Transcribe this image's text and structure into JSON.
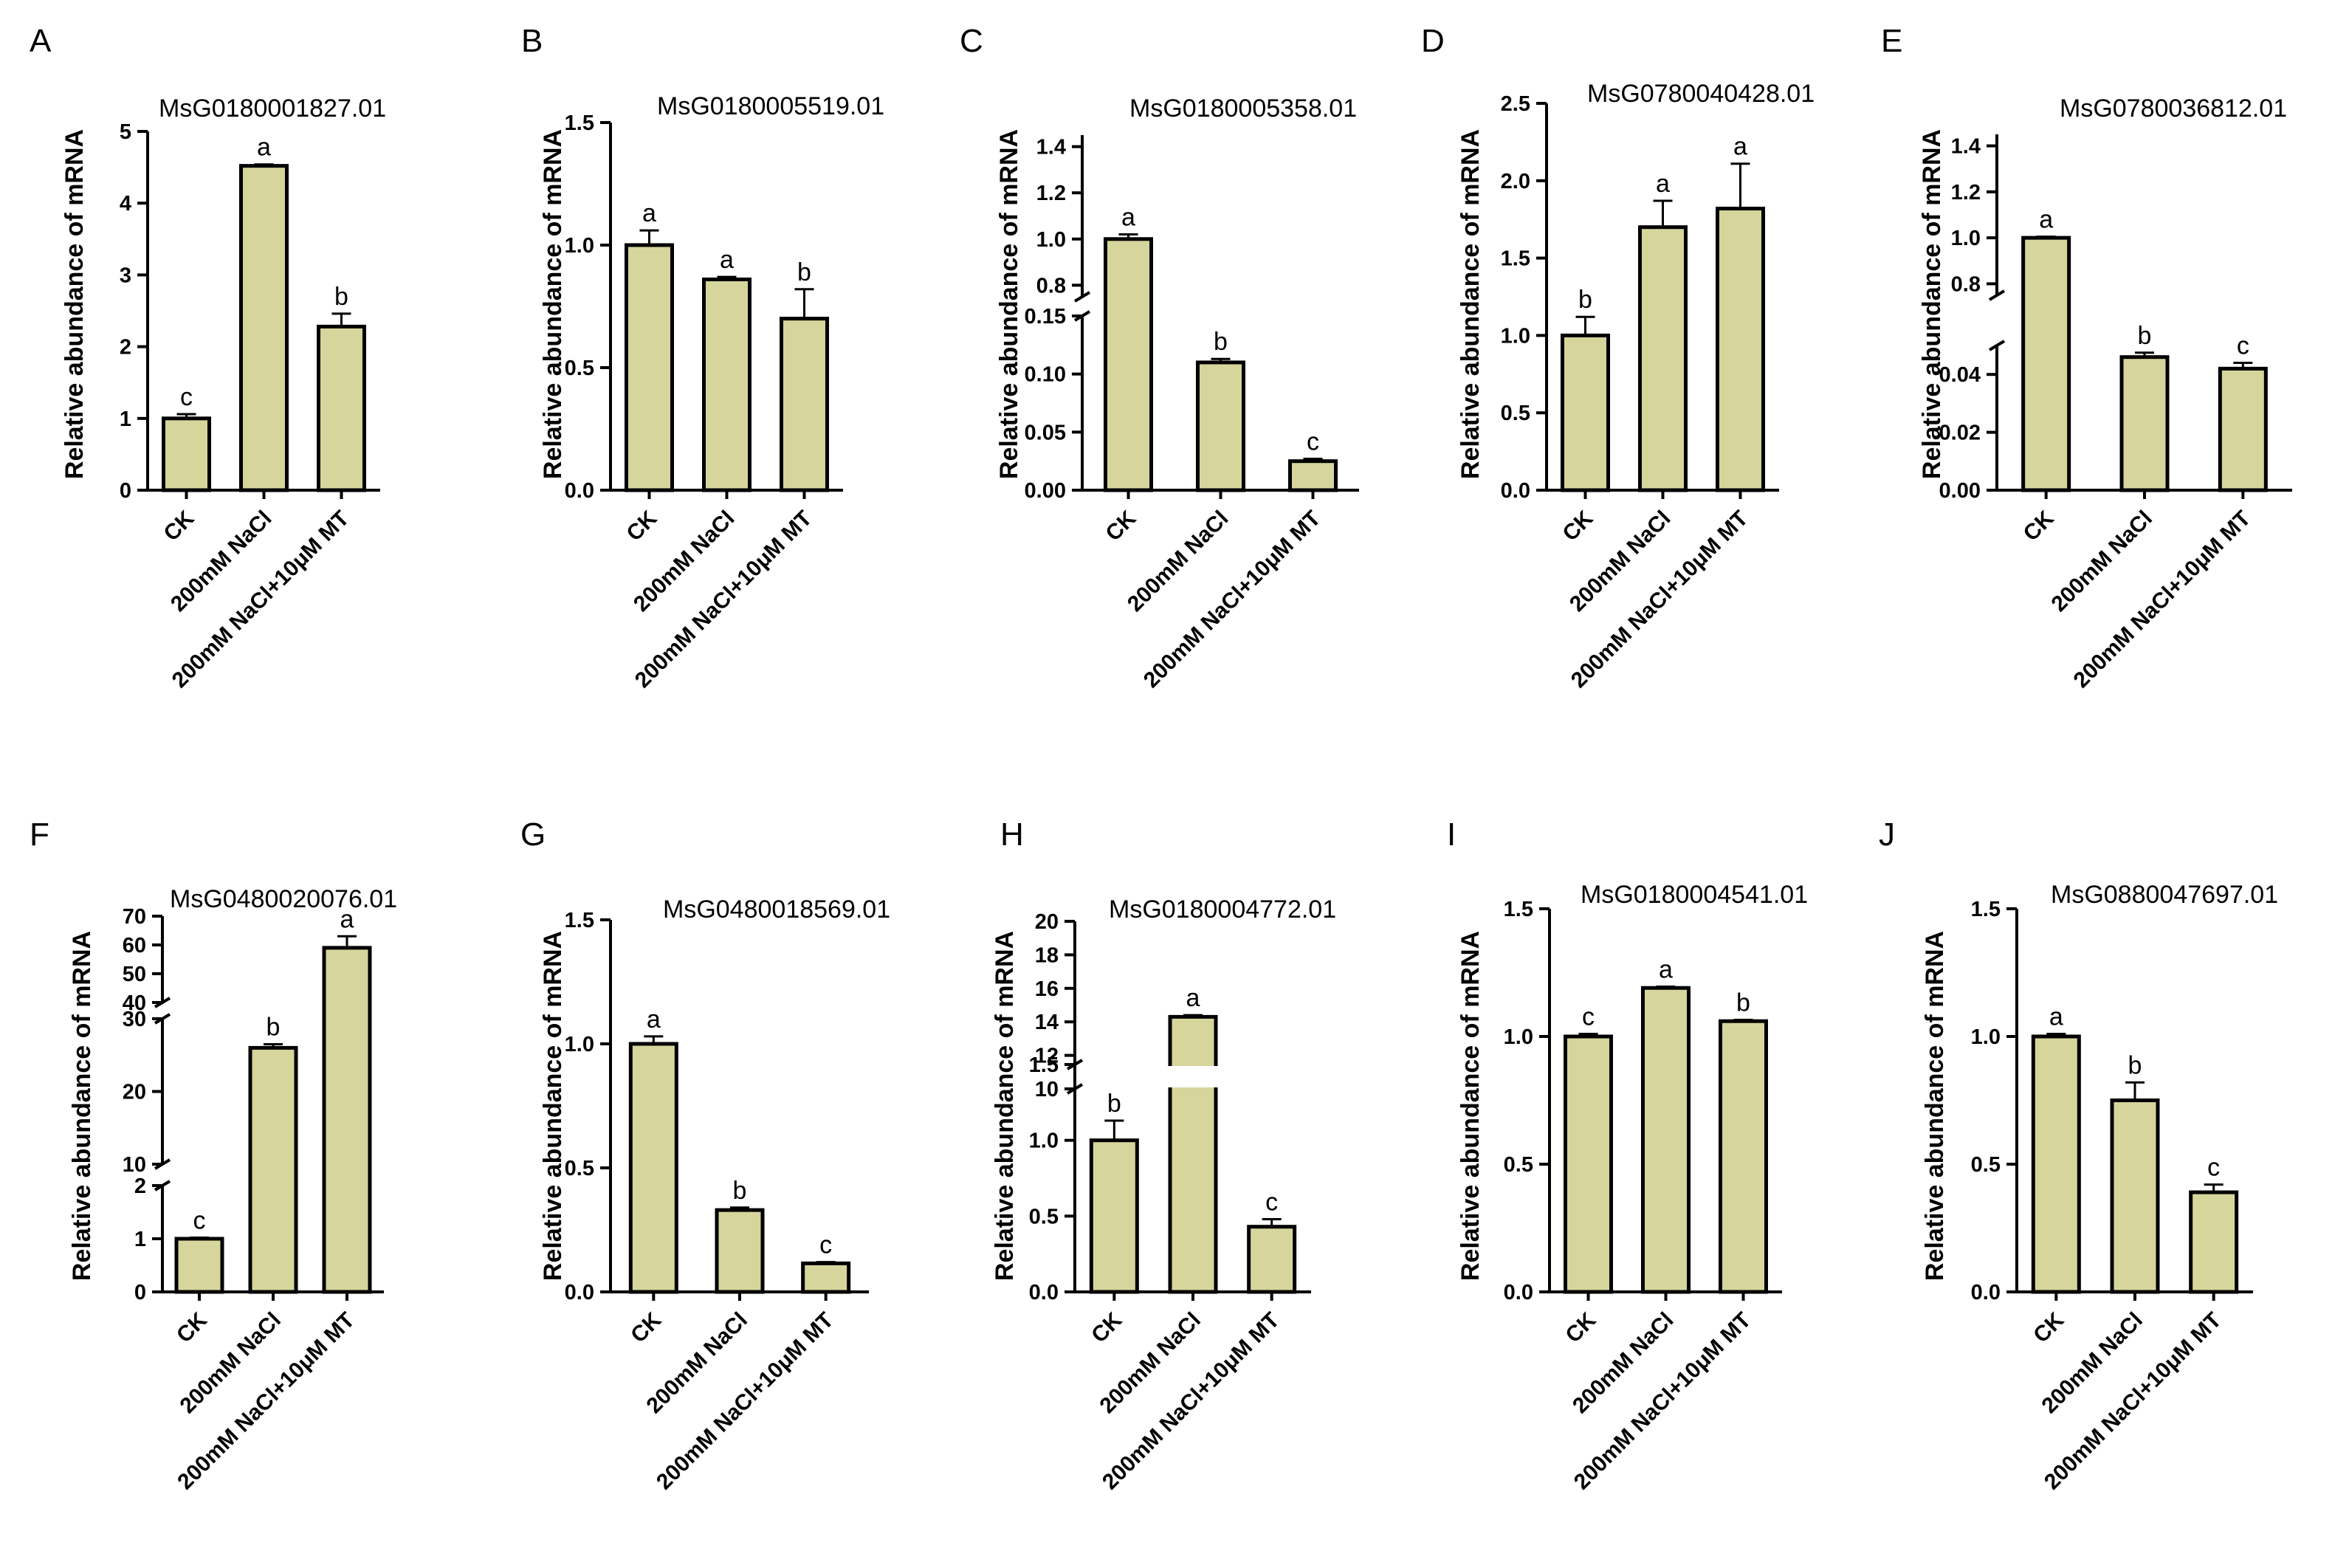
{
  "chart_data": [
    {
      "type": "bar",
      "panel": "A",
      "title": "MsG0180001827.01",
      "ylabel": "Relative abundance of mRNA",
      "categories": [
        "CK",
        "200mM NaCl",
        "200mM NaCl+10μM MT"
      ],
      "values": [
        1.0,
        4.52,
        2.28
      ],
      "errors": [
        0.06,
        0.02,
        0.18
      ],
      "letters": [
        "c",
        "a",
        "b"
      ],
      "segments": [
        {
          "ylim": [
            0,
            5
          ],
          "ticks": [
            "0",
            "1",
            "2",
            "3",
            "4",
            "5"
          ]
        }
      ]
    },
    {
      "type": "bar",
      "panel": "B",
      "title": "MsG0180005519.01",
      "ylabel": "Relative abundance of mRNA",
      "categories": [
        "CK",
        "200mM NaCl",
        "200mM NaCl+10μM MT"
      ],
      "values": [
        1.0,
        0.86,
        0.7
      ],
      "errors": [
        0.06,
        0.01,
        0.12
      ],
      "letters": [
        "a",
        "a",
        "b"
      ],
      "segments": [
        {
          "ylim": [
            0,
            1.5
          ],
          "ticks": [
            "0.0",
            "0.5",
            "1.0",
            "1.5"
          ]
        }
      ]
    },
    {
      "type": "bar",
      "panel": "C",
      "title": "MsG0180005358.01",
      "ylabel": "Relative abundance of mRNA",
      "categories": [
        "CK",
        "200mM NaCl",
        "200mM NaCl+10μM MT"
      ],
      "values": [
        1.0,
        0.11,
        0.025
      ],
      "errors": [
        0.02,
        0.003,
        0.002
      ],
      "letters": [
        "a",
        "b",
        "c"
      ],
      "segments": [
        {
          "ylim": [
            0,
            0.15
          ],
          "ticks": [
            "0.00",
            "0.05",
            "0.10",
            "0.15"
          ]
        },
        {
          "ylim": [
            0.75,
            1.45
          ],
          "ticks": [
            "0.8",
            "1.0",
            "1.2",
            "1.4"
          ]
        }
      ]
    },
    {
      "type": "bar",
      "panel": "D",
      "title": "MsG0780040428.01",
      "ylabel": "Relative abundance of mRNA",
      "categories": [
        "CK",
        "200mM NaCl",
        "200mM NaCl+10μM MT"
      ],
      "values": [
        1.0,
        1.7,
        1.82
      ],
      "errors": [
        0.12,
        0.17,
        0.29
      ],
      "letters": [
        "b",
        "a",
        "a"
      ],
      "segments": [
        {
          "ylim": [
            0,
            2.5
          ],
          "ticks": [
            "0.0",
            "0.5",
            "1.0",
            "1.5",
            "2.0",
            "2.5"
          ]
        }
      ]
    },
    {
      "type": "bar",
      "panel": "E",
      "title": "MsG0780036812.01",
      "ylabel": "Relative abundance of mRNA",
      "categories": [
        "CK",
        "200mM NaCl",
        "200mM NaCl+10μM MT"
      ],
      "values": [
        1.0,
        0.046,
        0.042
      ],
      "errors": [
        0.005,
        0.0015,
        0.002
      ],
      "letters": [
        "a",
        "b",
        "c"
      ],
      "segments": [
        {
          "ylim": [
            0,
            0.05
          ],
          "ticks": [
            "0.00",
            "0.02",
            "0.04"
          ]
        },
        {
          "ylim": [
            0.75,
            1.45
          ],
          "ticks": [
            "0.8",
            "1.0",
            "1.2",
            "1.4"
          ]
        }
      ]
    },
    {
      "type": "bar",
      "panel": "F",
      "title": "MsG0480020076.01",
      "ylabel": "Relative abundance of mRNA",
      "categories": [
        "CK",
        "200mM NaCl",
        "200mM NaCl+10μM MT"
      ],
      "values": [
        1.0,
        26.0,
        59.0
      ],
      "errors": [
        0.02,
        0.5,
        4.0
      ],
      "letters": [
        "c",
        "b",
        "a"
      ],
      "segments": [
        {
          "ylim": [
            0,
            2
          ],
          "ticks": [
            "0",
            "1",
            "2"
          ]
        },
        {
          "ylim": [
            10,
            30
          ],
          "ticks": [
            "10",
            "20",
            "30"
          ]
        },
        {
          "ylim": [
            40,
            70
          ],
          "ticks": [
            "40",
            "50",
            "60",
            "70"
          ]
        }
      ]
    },
    {
      "type": "bar",
      "panel": "G",
      "title": "MsG0480018569.01",
      "ylabel": "Relative abundance of mRNA",
      "categories": [
        "CK",
        "200mM NaCl",
        "200mM NaCl+10μM MT"
      ],
      "values": [
        1.0,
        0.33,
        0.115
      ],
      "errors": [
        0.03,
        0.01,
        0.005
      ],
      "letters": [
        "a",
        "b",
        "c"
      ],
      "segments": [
        {
          "ylim": [
            0,
            1.5
          ],
          "ticks": [
            "0.0",
            "0.5",
            "1.0",
            "1.5"
          ]
        }
      ]
    },
    {
      "type": "bar",
      "panel": "H",
      "title": "MsG0180004772.01",
      "ylabel": "Relative abundance of mRNA",
      "categories": [
        "CK",
        "200mM NaCl",
        "200mM NaCl+10μM MT"
      ],
      "values": [
        1.0,
        14.3,
        0.43
      ],
      "errors": [
        0.13,
        0.1,
        0.05
      ],
      "letters": [
        "b",
        "a",
        "c"
      ],
      "segments": [
        {
          "ylim": [
            0,
            1.5
          ],
          "ticks": [
            "0.0",
            "0.5",
            "1.0",
            "1.5"
          ]
        },
        {
          "ylim": [
            10,
            20
          ],
          "ticks": [
            "10",
            "12",
            "14",
            "16",
            "18",
            "20"
          ]
        }
      ]
    },
    {
      "type": "bar",
      "panel": "I",
      "title": "MsG0180004541.01",
      "ylabel": "Relative abundance of mRNA",
      "categories": [
        "CK",
        "200mM NaCl",
        "200mM NaCl+10μM MT"
      ],
      "values": [
        1.0,
        1.19,
        1.06
      ],
      "errors": [
        0.01,
        0.005,
        0.005
      ],
      "letters": [
        "c",
        "a",
        "b"
      ],
      "segments": [
        {
          "ylim": [
            0,
            1.5
          ],
          "ticks": [
            "0.0",
            "0.5",
            "1.0",
            "1.5"
          ]
        }
      ]
    },
    {
      "type": "bar",
      "panel": "J",
      "title": "MsG0880047697.01",
      "ylabel": "Relative abundance of mRNA",
      "categories": [
        "CK",
        "200mM NaCl",
        "200mM NaCl+10μM MT"
      ],
      "values": [
        1.0,
        0.75,
        0.39
      ],
      "errors": [
        0.01,
        0.07,
        0.03
      ],
      "letters": [
        "a",
        "b",
        "c"
      ],
      "segments": [
        {
          "ylim": [
            0,
            1.5
          ],
          "ticks": [
            "0.0",
            "0.5",
            "1.0",
            "1.5"
          ]
        }
      ]
    }
  ]
}
